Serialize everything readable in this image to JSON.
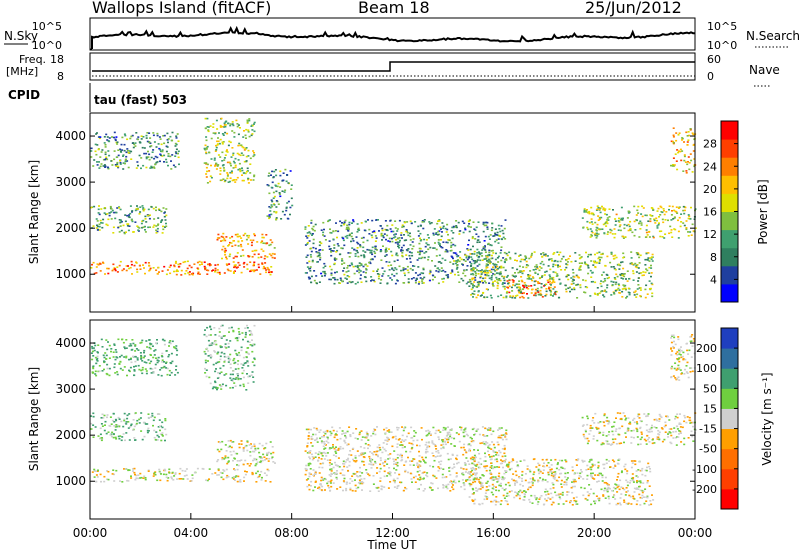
{
  "header": {
    "title": "Wallops Island (fitACF)",
    "beam": "Beam 18",
    "date": "25/Jun/2012"
  },
  "top_panels": {
    "nsky_label": "N.Sky",
    "nsky_ticks": [
      "10^5",
      "10^0"
    ],
    "nsearch_label": "N.Search",
    "nsearch_ticks": [
      "10^5",
      "10^0"
    ],
    "freq_label_1": "Freq.",
    "freq_label_2": "[MHz]",
    "freq_ticks": [
      "18",
      "8"
    ],
    "nave_label": "Nave",
    "nave_ticks": [
      "60",
      "0"
    ],
    "cpid_label": "CPID",
    "cpid_text": "tau (fast) 503"
  },
  "power_colorbar": {
    "label": "Power [dB]",
    "ticks": [
      "28",
      "24",
      "20",
      "16",
      "12",
      "8",
      "4"
    ],
    "colors": [
      "#0000ff",
      "#1f3f9f",
      "#2f7f5f",
      "#3fa06f",
      "#7fbf3f",
      "#dfdf00",
      "#ffbf00",
      "#ff7f00",
      "#ff3f00",
      "#ff0000"
    ]
  },
  "velocity_colorbar": {
    "label": "Velocity [m s⁻¹]",
    "ticks": [
      "200",
      "100",
      "50",
      "15",
      "-15",
      "-50",
      "-100",
      "-200"
    ],
    "colors": [
      "#1f3fbf",
      "#2f6f9f",
      "#3f9f6f",
      "#6fcf3f",
      "#cfcfcf",
      "#ff9f00",
      "#ff6f00",
      "#ff3f00",
      "#ff0000"
    ]
  },
  "x_axis": {
    "label": "Time UT",
    "ticks": [
      "00:00",
      "04:00",
      "08:00",
      "12:00",
      "16:00",
      "20:00",
      "00:00"
    ]
  },
  "y_axis": {
    "label": "Slant Range [km]",
    "ticks": [
      "4000",
      "3000",
      "2000",
      "1000"
    ]
  },
  "chart_data": [
    {
      "type": "heatmap",
      "panel": "power",
      "x_range_hours": [
        0,
        24
      ],
      "y_range_km": [
        180,
        4500
      ],
      "clim_db": [
        0,
        32
      ],
      "regions": [
        {
          "t0": 0.0,
          "t1": 7.2,
          "r0": 1000,
          "r1": 1300,
          "value": 24
        },
        {
          "t0": 5.0,
          "t1": 7.3,
          "r0": 1350,
          "r1": 1900,
          "value": 22
        },
        {
          "t0": 0.0,
          "t1": 3.0,
          "r0": 1900,
          "r1": 2500,
          "value": 12
        },
        {
          "t0": 0.0,
          "t1": 3.5,
          "r0": 3300,
          "r1": 4100,
          "value": 10
        },
        {
          "t0": 4.5,
          "t1": 6.5,
          "r0": 3000,
          "r1": 4400,
          "value": 16
        },
        {
          "t0": 7.0,
          "t1": 8.0,
          "r0": 2200,
          "r1": 3300,
          "value": 10
        },
        {
          "t0": 8.5,
          "t1": 16.5,
          "r0": 800,
          "r1": 2200,
          "value": 10
        },
        {
          "t0": 16.5,
          "t1": 18.5,
          "r0": 500,
          "r1": 900,
          "value": 26
        },
        {
          "t0": 15.0,
          "t1": 22.3,
          "r0": 500,
          "r1": 1500,
          "value": 14
        },
        {
          "t0": 19.5,
          "t1": 24.0,
          "r0": 1800,
          "r1": 2500,
          "value": 16
        },
        {
          "t0": 23.0,
          "t1": 24.0,
          "r0": 3200,
          "r1": 4200,
          "value": 20
        }
      ]
    },
    {
      "type": "heatmap",
      "panel": "velocity",
      "x_range_hours": [
        0,
        24
      ],
      "y_range_km": [
        180,
        4500
      ],
      "clim_ms": [
        -250,
        250
      ],
      "regions": [
        {
          "t0": 0.0,
          "t1": 7.2,
          "r0": 1000,
          "r1": 1300,
          "value": 0
        },
        {
          "t0": 5.0,
          "t1": 7.3,
          "r0": 1350,
          "r1": 1900,
          "value": 0
        },
        {
          "t0": 0.0,
          "t1": 3.0,
          "r0": 1900,
          "r1": 2500,
          "value": 30
        },
        {
          "t0": 0.0,
          "t1": 3.5,
          "r0": 3300,
          "r1": 4100,
          "value": 40
        },
        {
          "t0": 4.5,
          "t1": 6.5,
          "r0": 3000,
          "r1": 4400,
          "value": 30
        },
        {
          "t0": 8.5,
          "t1": 16.5,
          "r0": 800,
          "r1": 2200,
          "value": 0
        },
        {
          "t0": 15.0,
          "t1": 22.3,
          "r0": 500,
          "r1": 1500,
          "value": 0
        },
        {
          "t0": 19.5,
          "t1": 24.0,
          "r0": 1800,
          "r1": 2500,
          "value": 0
        },
        {
          "t0": 23.0,
          "t1": 24.0,
          "r0": 3200,
          "r1": 4200,
          "value": 0
        }
      ]
    }
  ]
}
